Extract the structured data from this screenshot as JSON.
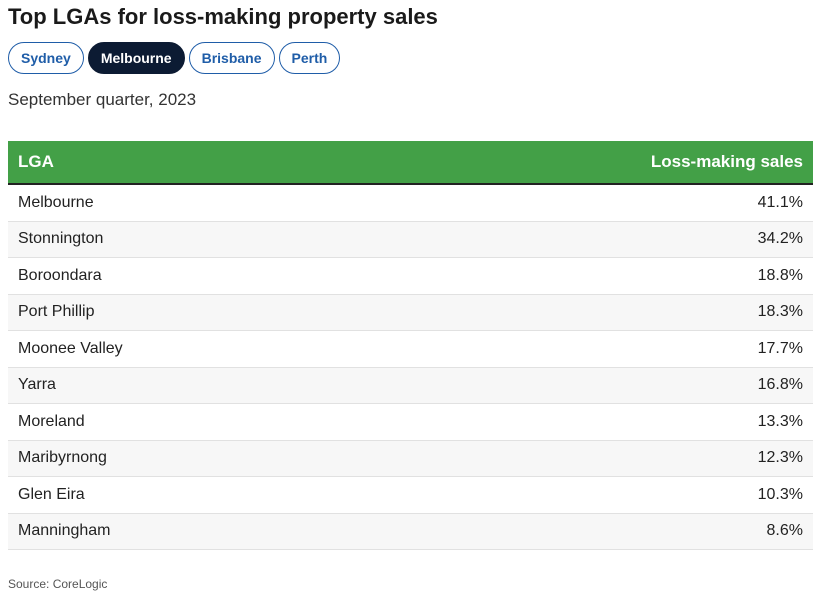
{
  "title": "Top LGAs for loss-making property sales",
  "tabs": [
    {
      "label": "Sydney",
      "active": false
    },
    {
      "label": "Melbourne",
      "active": true
    },
    {
      "label": "Brisbane",
      "active": false
    },
    {
      "label": "Perth",
      "active": false
    }
  ],
  "subtitle": "September quarter, 2023",
  "source": "Source: CoreLogic",
  "colors": {
    "header_green": "#43a047",
    "active_tab": "#0c1b33",
    "tab_blue": "#1f5da8"
  },
  "chart_data": {
    "type": "table",
    "title": "Top LGAs for loss-making property sales",
    "subtitle": "September quarter, 2023",
    "columns": [
      "LGA",
      "Loss-making sales"
    ],
    "rows": [
      {
        "lga": "Melbourne",
        "value": "41.1%"
      },
      {
        "lga": "Stonnington",
        "value": "34.2%"
      },
      {
        "lga": "Boroondara",
        "value": "18.8%"
      },
      {
        "lga": "Port Phillip",
        "value": "18.3%"
      },
      {
        "lga": "Moonee Valley",
        "value": "17.7%"
      },
      {
        "lga": "Yarra",
        "value": "16.8%"
      },
      {
        "lga": "Moreland",
        "value": "13.3%"
      },
      {
        "lga": "Maribyrnong",
        "value": "12.3%"
      },
      {
        "lga": "Glen Eira",
        "value": "10.3%"
      },
      {
        "lga": "Manningham",
        "value": "8.6%"
      }
    ],
    "source": "CoreLogic"
  }
}
